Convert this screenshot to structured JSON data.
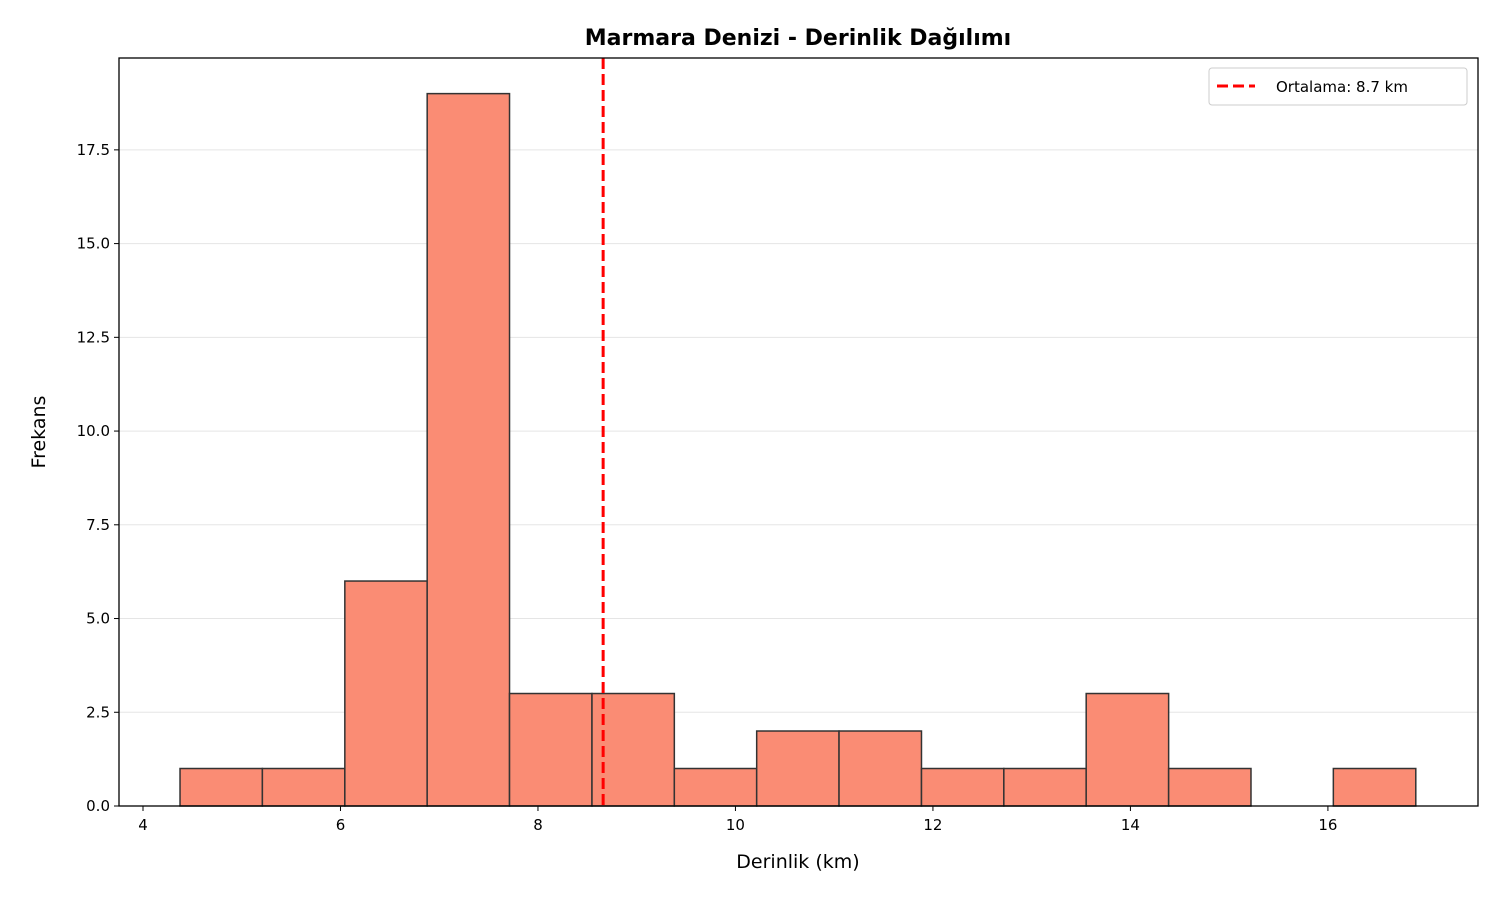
{
  "chart_data": {
    "type": "histogram",
    "title": "Marmara Denizi - Derinlik Dağılımı",
    "x_label": "Derinlik (km)",
    "y_label": "Frekans",
    "bins": [
      4.375,
      5.209,
      6.044,
      6.878,
      7.712,
      8.547,
      9.381,
      10.215,
      11.049,
      11.884,
      12.718,
      13.552,
      14.387,
      15.221,
      16.055,
      16.89
    ],
    "values": [
      1,
      1,
      6,
      19,
      3,
      3,
      1,
      2,
      2,
      1,
      1,
      3,
      1,
      0,
      1
    ],
    "color": "#fa8c74",
    "edgecolor": "#333333",
    "mean_line": {
      "value": 8.66,
      "label": "Ortalama: 8.7 km",
      "color": "#ff0000"
    },
    "xlim": [
      3.757,
      17.52
    ],
    "xticks": [
      4,
      6,
      8,
      10,
      12,
      14,
      16
    ],
    "ylim": [
      0,
      19.95
    ],
    "yticks": [
      {
        "value": 0,
        "label": "0.0"
      },
      2.5,
      {
        "value": 5,
        "label": "5.0"
      },
      7.5,
      {
        "value": 10,
        "label": "10.0"
      },
      12.5,
      {
        "value": 15,
        "label": "15.0"
      },
      17.5
    ],
    "grid": "y",
    "legend": "upper right"
  }
}
